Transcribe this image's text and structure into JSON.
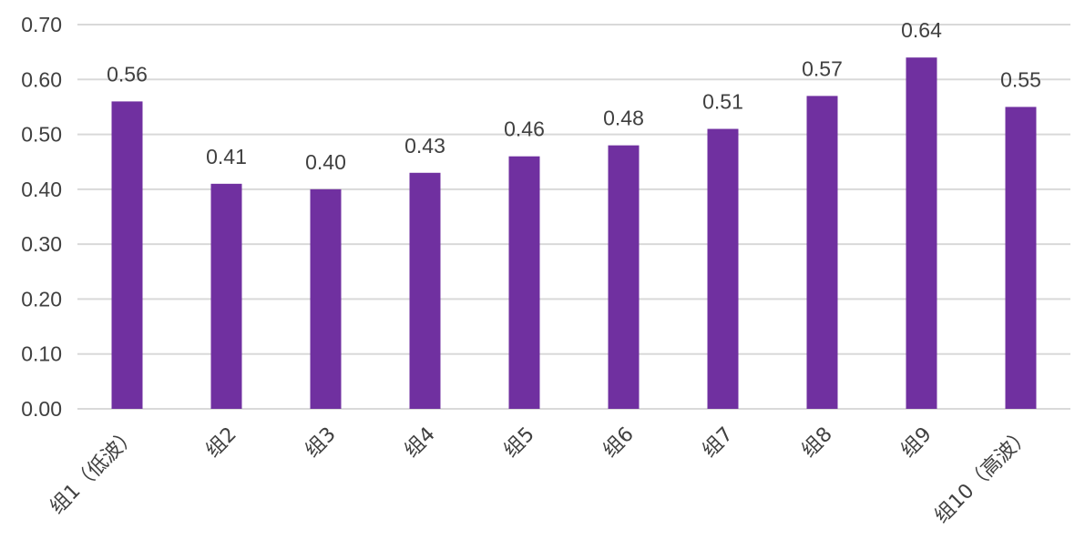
{
  "chart_data": {
    "type": "bar",
    "title": "",
    "xlabel": "",
    "ylabel": "",
    "categories": [
      "组1（低波）",
      "组2",
      "组3",
      "组4",
      "组5",
      "组6",
      "组7",
      "组8",
      "组9",
      "组10（高波）"
    ],
    "values": [
      0.56,
      0.41,
      0.4,
      0.43,
      0.46,
      0.48,
      0.51,
      0.57,
      0.64,
      0.55
    ],
    "data_labels": [
      "0.56",
      "0.41",
      "0.40",
      "0.43",
      "0.46",
      "0.48",
      "0.51",
      "0.57",
      "0.64",
      "0.55"
    ],
    "ylim": [
      0,
      0.7
    ],
    "yticks": [
      "0.00",
      "0.10",
      "0.20",
      "0.30",
      "0.40",
      "0.50",
      "0.60",
      "0.70"
    ],
    "grid": true,
    "legend": "none",
    "bar_color": "#7030A0",
    "grid_color": "#D9D9D9"
  }
}
